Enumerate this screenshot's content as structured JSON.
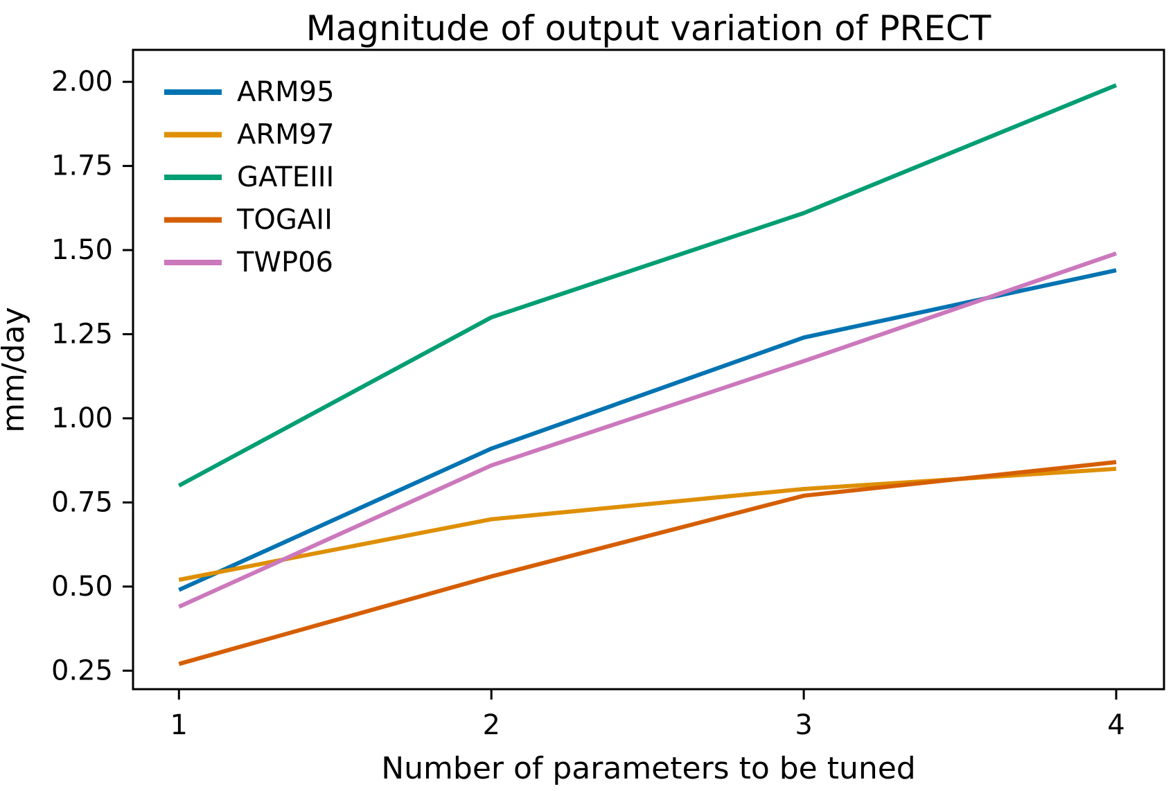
{
  "figure": {
    "background": "#ffffff",
    "axis_color": "#000000",
    "text_color": "#000000"
  },
  "chart_data": {
    "type": "line",
    "title": "Magnitude of output variation of PRECT",
    "xlabel": "Number of parameters to be tuned",
    "ylabel": "mm/day",
    "x": [
      1,
      2,
      3,
      4
    ],
    "series": [
      {
        "name": "ARM95",
        "color": "#0173b2",
        "values": [
          0.49,
          0.91,
          1.24,
          1.44
        ]
      },
      {
        "name": "ARM97",
        "color": "#de8f05",
        "values": [
          0.52,
          0.7,
          0.79,
          0.85
        ]
      },
      {
        "name": "GATEIII",
        "color": "#029e73",
        "values": [
          0.8,
          1.3,
          1.61,
          1.99
        ]
      },
      {
        "name": "TOGAII",
        "color": "#d55e00",
        "values": [
          0.27,
          0.53,
          0.77,
          0.87
        ]
      },
      {
        "name": "TWP06",
        "color": "#cc78bc",
        "values": [
          0.44,
          0.86,
          1.17,
          1.49
        ]
      }
    ],
    "x_ticks": [
      1,
      2,
      3,
      4
    ],
    "x_tick_labels": [
      "1",
      "2",
      "3",
      "4"
    ],
    "y_ticks": [
      0.25,
      0.5,
      0.75,
      1.0,
      1.25,
      1.5,
      1.75,
      2.0
    ],
    "y_tick_labels": [
      "0.25",
      "0.50",
      "0.75",
      "1.00",
      "1.25",
      "1.50",
      "1.75",
      "2.00"
    ],
    "xlim": [
      0.853,
      4.153
    ],
    "ylim": [
      0.195,
      2.095
    ],
    "grid": false,
    "legend_position": "upper left",
    "legend_entries": [
      "ARM95",
      "ARM97",
      "GATEIII",
      "TOGAII",
      "TWP06"
    ]
  }
}
